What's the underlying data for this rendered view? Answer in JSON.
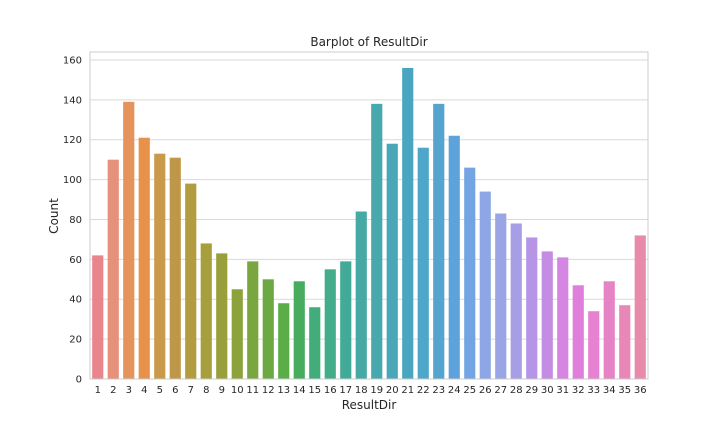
{
  "chart_data": {
    "type": "bar",
    "title": "Barplot of ResultDir",
    "xlabel": "ResultDir",
    "ylabel": "Count",
    "ylim": [
      0,
      164
    ],
    "yticks": [
      0,
      20,
      40,
      60,
      80,
      100,
      120,
      140,
      160
    ],
    "grid": true,
    "categories": [
      "1",
      "2",
      "3",
      "4",
      "5",
      "6",
      "7",
      "8",
      "9",
      "10",
      "11",
      "12",
      "13",
      "14",
      "15",
      "16",
      "17",
      "18",
      "19",
      "20",
      "21",
      "22",
      "23",
      "24",
      "25",
      "26",
      "27",
      "28",
      "29",
      "30",
      "31",
      "32",
      "33",
      "34",
      "35",
      "36"
    ],
    "values": [
      62,
      110,
      139,
      121,
      113,
      111,
      98,
      68,
      63,
      45,
      59,
      50,
      38,
      49,
      36,
      55,
      59,
      84,
      138,
      118,
      156,
      116,
      138,
      122,
      106,
      94,
      83,
      78,
      71,
      64,
      61,
      47,
      34,
      49,
      37,
      72
    ],
    "colors": [
      "#e8858d",
      "#e7907a",
      "#e6935b",
      "#e8914a",
      "#c99a4a",
      "#bf9748",
      "#b39c40",
      "#a69f3c",
      "#999f3b",
      "#8ca23b",
      "#7aa63f",
      "#6ca943",
      "#5aad47",
      "#47ac5d",
      "#42ac7b",
      "#43ac8a",
      "#44aa98",
      "#46a9a4",
      "#47a8ae",
      "#49a7b8",
      "#4aa6c0",
      "#4ea6c8",
      "#55a4d0",
      "#5ea2db",
      "#74a5e3",
      "#8da7e6",
      "#9aa5e6",
      "#a89ee5",
      "#b695e6",
      "#c48ce3",
      "#d586e2",
      "#e07fdb",
      "#e881d2",
      "#e683c4",
      "#e887b8",
      "#e88aa9"
    ]
  }
}
